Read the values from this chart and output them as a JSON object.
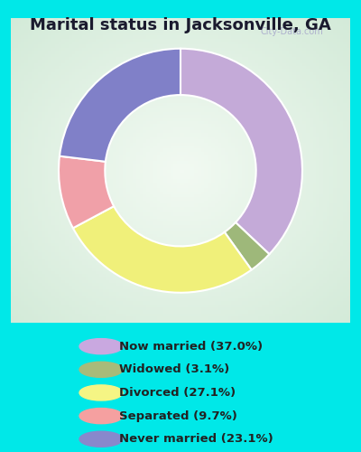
{
  "title": "Marital status in Jacksonville, GA",
  "title_fontsize": 13,
  "categories": [
    "Now married",
    "Widowed",
    "Divorced",
    "Separated",
    "Never married"
  ],
  "values": [
    37.0,
    3.1,
    27.1,
    9.7,
    23.1
  ],
  "colors": [
    "#c4aad8",
    "#9eb87a",
    "#f0f07a",
    "#f0a0a8",
    "#8080c8"
  ],
  "legend_labels": [
    "Now married (37.0%)",
    "Widowed (3.1%)",
    "Divorced (27.1%)",
    "Separated (9.7%)",
    "Never married (23.1%)"
  ],
  "legend_colors": [
    "#c9a8e0",
    "#a8bb7a",
    "#f5f584",
    "#f5a0a0",
    "#8888cc"
  ],
  "bg_outer": "#00e8e8",
  "bg_chart_edge": "#c8e8d0",
  "bg_chart_center": "#f0f8f0",
  "watermark": "City-Data.com",
  "donut_width": 0.38,
  "start_angle": 90
}
